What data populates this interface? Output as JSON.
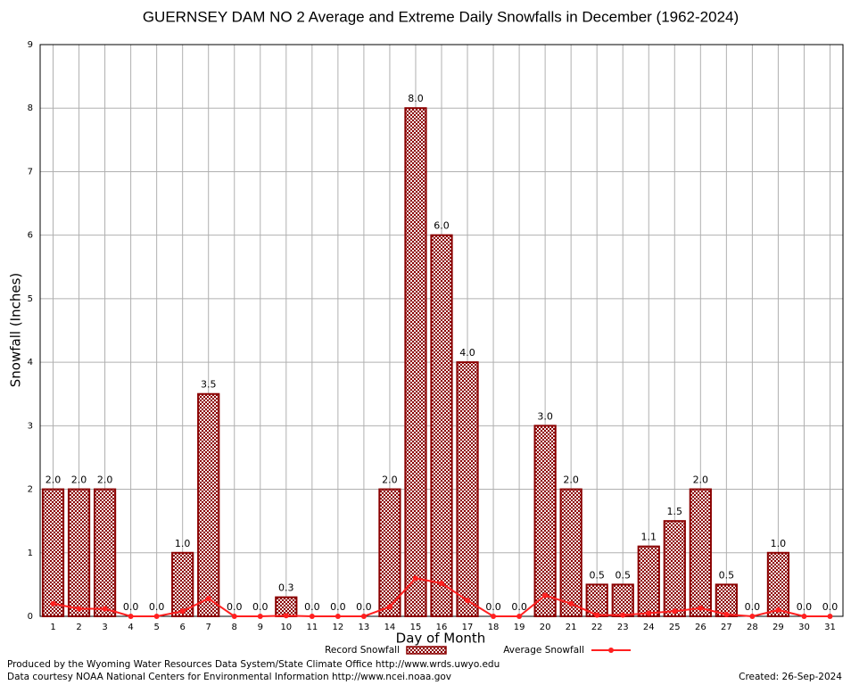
{
  "chart_data": {
    "type": "bar",
    "title": "GUERNSEY DAM NO 2 Average and Extreme Daily Snowfalls in December (1962-2024)",
    "x_label": "Day of Month",
    "y_label": "Snowfall (Inches)",
    "categories": [
      "1",
      "2",
      "3",
      "4",
      "5",
      "6",
      "7",
      "8",
      "9",
      "10",
      "11",
      "12",
      "13",
      "14",
      "15",
      "16",
      "17",
      "18",
      "19",
      "20",
      "21",
      "22",
      "23",
      "24",
      "25",
      "26",
      "27",
      "28",
      "29",
      "30",
      "31"
    ],
    "series": [
      {
        "name": "Record Snowfall",
        "type": "bar",
        "color": "#8b0000",
        "values": [
          2,
          2,
          2,
          0,
          0,
          1,
          3.5,
          0,
          0,
          0.3,
          0,
          0,
          0,
          2,
          8,
          6,
          4,
          0,
          0,
          3,
          2,
          0.5,
          0.5,
          1.1,
          1.5,
          2,
          0.5,
          0,
          1,
          0,
          0
        ],
        "value_labels": [
          "2.0",
          "2.0",
          "2.0",
          "0.0",
          "0.0",
          "1.0",
          "3.5",
          "0.0",
          "0.0",
          "0.3",
          "0.0",
          "0.0",
          "0.0",
          "2.0",
          "8.0",
          "6.0",
          "4.0",
          "0.0",
          "0.0",
          "3.0",
          "2.0",
          "0.5",
          "0.5",
          "1.1",
          "1.5",
          "2.0",
          "0.5",
          "0.0",
          "1.0",
          "0.0",
          "0.0"
        ]
      },
      {
        "name": "Average Snowfall",
        "type": "line",
        "color": "#ff2020",
        "values": [
          0.2,
          0.12,
          0.12,
          0,
          0,
          0.08,
          0.28,
          0,
          0,
          0.01,
          0,
          0,
          0,
          0.15,
          0.6,
          0.52,
          0.25,
          0,
          0,
          0.33,
          0.2,
          0.02,
          0.02,
          0.05,
          0.08,
          0.13,
          0.03,
          0,
          0.1,
          0,
          0
        ]
      }
    ],
    "ylim": [
      0,
      9
    ],
    "yticks": [
      0,
      1,
      2,
      3,
      4,
      5,
      6,
      7,
      8,
      9
    ],
    "grid": true,
    "notes": [
      "Produced by the Wyoming Water Resources Data System/State Climate Office http://www.wrds.uwyo.edu",
      "Data courtesy NOAA National Centers for Environmental Information http://www.ncei.noaa.gov"
    ],
    "created": "Created:  26-Sep-2024"
  }
}
